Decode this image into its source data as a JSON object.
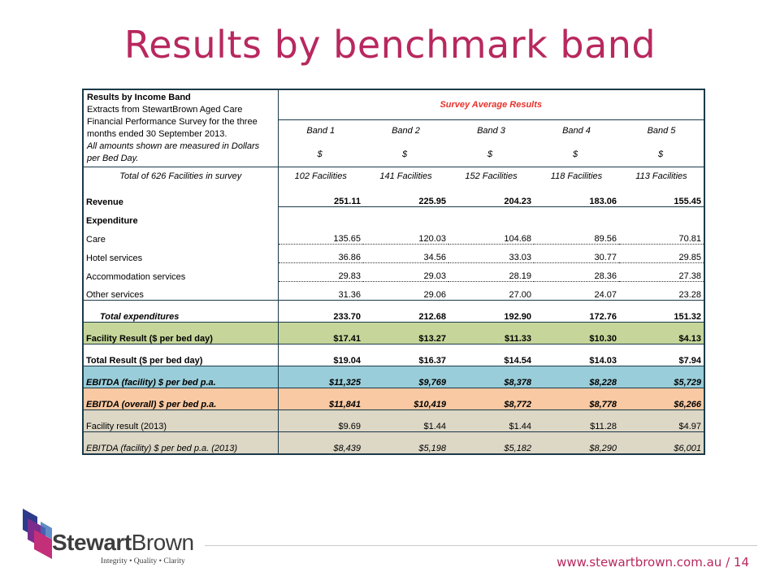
{
  "title": "Results by benchmark band",
  "header": {
    "line1": "Results by Income Band",
    "line2": "Extracts from StewartBrown Aged Care Financial Performance Survey for the three months ended 30 September 2013.",
    "line3": "All amounts shown are measured in Dollars per Bed Day.",
    "survey_title": "Survey Average Results",
    "bands": [
      "Band 1",
      "Band 2",
      "Band 3",
      "Band 4",
      "Band 5"
    ],
    "currency": [
      "$",
      "$",
      "$",
      "$",
      "$"
    ],
    "total_label": "Total of 626 Facilities in survey",
    "facilities": [
      "102 Facilities",
      "141 Facilities",
      "152 Facilities",
      "118 Facilities",
      "113 Facilities"
    ]
  },
  "rows": {
    "revenue": {
      "label": "Revenue",
      "values": [
        "251.11",
        "225.95",
        "204.23",
        "183.06",
        "155.45"
      ]
    },
    "expenditure": {
      "label": "Expenditure"
    },
    "care": {
      "label": "Care",
      "values": [
        "135.65",
        "120.03",
        "104.68",
        "89.56",
        "70.81"
      ]
    },
    "hotel": {
      "label": "Hotel services",
      "values": [
        "36.86",
        "34.56",
        "33.03",
        "30.77",
        "29.85"
      ]
    },
    "accommodation": {
      "label": "Accommodation services",
      "values": [
        "29.83",
        "29.03",
        "28.19",
        "28.36",
        "27.38"
      ]
    },
    "other": {
      "label": "Other services",
      "values": [
        "31.36",
        "29.06",
        "27.00",
        "24.07",
        "23.28"
      ]
    },
    "total_exp": {
      "label": "Total expenditures",
      "values": [
        "233.70",
        "212.68",
        "192.90",
        "172.76",
        "151.32"
      ]
    },
    "facility_result": {
      "label": "Facility Result ($ per bed day)",
      "values": [
        "$17.41",
        "$13.27",
        "$11.33",
        "$10.30",
        "$4.13"
      ]
    },
    "total_result": {
      "label": "Total Result ($ per bed day)",
      "values": [
        "$19.04",
        "$16.37",
        "$14.54",
        "$14.03",
        "$7.94"
      ]
    },
    "ebitda_facility": {
      "label": "EBITDA (facility) $ per bed p.a.",
      "values": [
        "$11,325",
        "$9,769",
        "$8,378",
        "$8,228",
        "$5,729"
      ]
    },
    "ebitda_overall": {
      "label": "EBITDA (overall) $ per bed p.a.",
      "values": [
        "$11,841",
        "$10,419",
        "$8,772",
        "$8,778",
        "$6,266"
      ]
    },
    "facility_2013": {
      "label": "Facility result (2013)",
      "values": [
        "$9.69",
        "$1.44",
        "$1.44",
        "$11.28",
        "$4.97"
      ]
    },
    "ebitda_2013": {
      "label": "EBITDA (facility) $ per bed p.a. (2013)",
      "values": [
        "$8,439",
        "$5,198",
        "$5,182",
        "$8,290",
        "$6,001"
      ]
    }
  },
  "footer": {
    "url": "www.stewartbrown.com.au",
    "separator": "/",
    "page": "14"
  },
  "logo": {
    "brand_bold": "Stewart",
    "brand_light": "Brown",
    "tagline": "Integrity • Quality • Clarity"
  },
  "colors": {
    "accent": "#b8285e",
    "survey_title": "#e8312a",
    "facility_result_bg": "#c6d69a",
    "ebitda_facility_bg": "#99cdd9",
    "ebitda_overall_bg": "#f8c9a3",
    "result_2013_bg": "#ddd7c6"
  }
}
